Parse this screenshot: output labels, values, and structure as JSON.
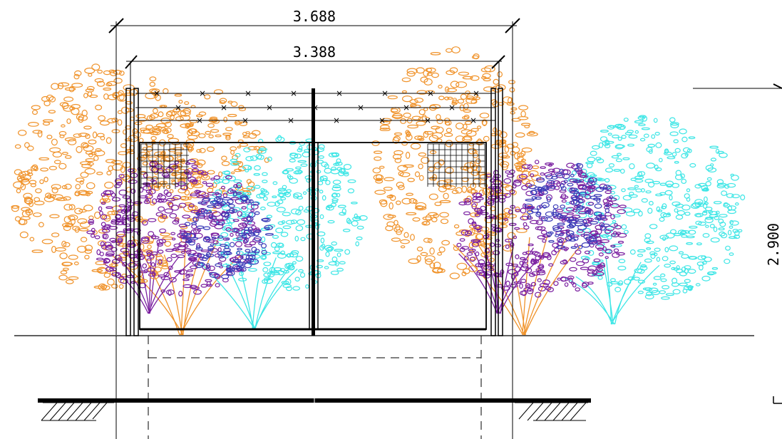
{
  "dimensions": {
    "overall_width": "3.688",
    "inner_width": "3.388",
    "height": "2.900"
  },
  "colors": {
    "line": "#000000",
    "foliage_orange": "#f0932b",
    "foliage_cyan": "#3ee6e6",
    "foliage_purple": "#7a1fa0",
    "foliage_blue": "#3b3bb8",
    "background": "#ffffff"
  }
}
